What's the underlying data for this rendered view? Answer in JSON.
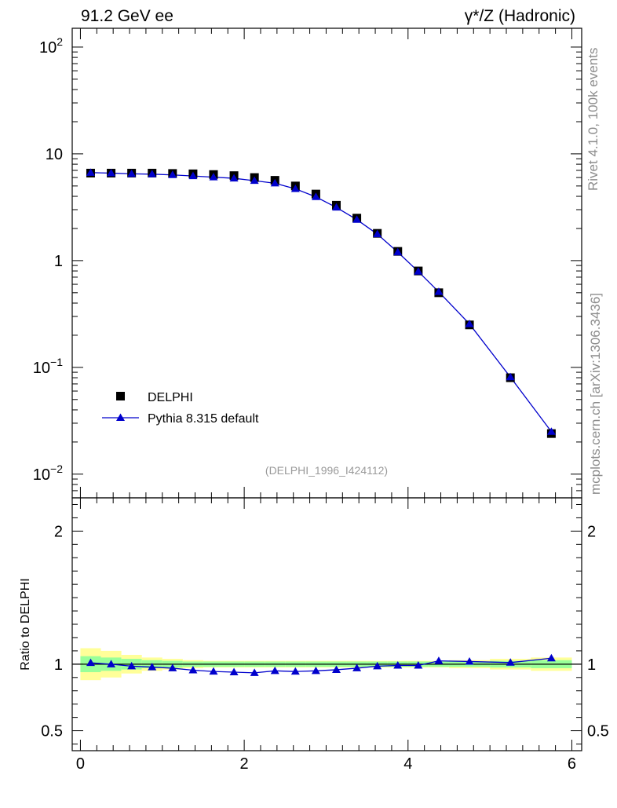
{
  "header": {
    "left_title": "91.2 GeV ee",
    "right_title": "γ*/Z (Hadronic)"
  },
  "side": {
    "rivet": "Rivet 4.1.0,  100k events",
    "mcplots": "mcplots.cern.ch [arXiv:1306.3436]"
  },
  "colors": {
    "data": "#000000",
    "mc": "#0000cc",
    "band_green": "#99ff99",
    "band_yellow": "#ffff99"
  },
  "chart_data": [
    {
      "type": "scatter",
      "title": "91.2 GeV ee",
      "subtitle": "(DELPHI_1996_I424112)",
      "xlabel": "",
      "ylabel": "",
      "xlim": [
        -0.1,
        6.12
      ],
      "ylim": [
        0.006,
        150
      ],
      "yscale": "log",
      "y_ticks": [
        {
          "v": 0.01,
          "base": "10",
          "exp": "−2"
        },
        {
          "v": 0.1,
          "base": "10",
          "exp": "−1"
        },
        {
          "v": 1,
          "base": "1",
          "exp": ""
        },
        {
          "v": 10,
          "base": "10",
          "exp": ""
        },
        {
          "v": 100,
          "base": "10",
          "exp": "2"
        }
      ],
      "legend": {
        "position": "bottom-left",
        "entries": [
          "DELPHI",
          "Pythia 8.315 default"
        ]
      },
      "series": [
        {
          "name": "DELPHI",
          "marker": "square",
          "x": [
            0.125,
            0.375,
            0.625,
            0.875,
            1.125,
            1.375,
            1.625,
            1.875,
            2.125,
            2.375,
            2.625,
            2.875,
            3.125,
            3.375,
            3.625,
            3.875,
            4.125,
            4.375,
            4.75,
            5.25,
            5.75
          ],
          "y": [
            6.6,
            6.6,
            6.6,
            6.6,
            6.55,
            6.5,
            6.4,
            6.25,
            6.0,
            5.65,
            5.0,
            4.2,
            3.3,
            2.5,
            1.8,
            1.22,
            0.8,
            0.5,
            0.25,
            0.08,
            0.024
          ]
        },
        {
          "name": "Pythia 8.315 default",
          "marker": "triangle",
          "x": [
            0.125,
            0.375,
            0.625,
            0.875,
            1.125,
            1.375,
            1.625,
            1.875,
            2.125,
            2.375,
            2.625,
            2.875,
            3.125,
            3.375,
            3.625,
            3.875,
            4.125,
            4.375,
            4.75,
            5.25,
            5.75
          ],
          "y": [
            6.67,
            6.6,
            6.5,
            6.45,
            6.35,
            6.2,
            6.05,
            5.9,
            5.6,
            5.3,
            4.7,
            3.95,
            3.15,
            2.42,
            1.77,
            1.2,
            0.79,
            0.51,
            0.255,
            0.081,
            0.025
          ]
        }
      ]
    },
    {
      "type": "line",
      "title": "",
      "xlabel": "",
      "ylabel": "Ratio to DELPHI",
      "xlim": [
        -0.1,
        6.12
      ],
      "ylim": [
        0.35,
        2.25
      ],
      "x_ticks": [
        0,
        2,
        4,
        6
      ],
      "y_ticks": [
        0.5,
        1,
        2
      ],
      "reference_line": 1,
      "bands": {
        "edges": [
          0,
          0.25,
          0.5,
          0.75,
          1.0,
          1.25,
          1.5,
          1.75,
          2.0,
          2.25,
          2.5,
          2.75,
          3.0,
          3.25,
          3.5,
          3.75,
          4.0,
          4.25,
          4.5,
          5.0,
          5.5,
          6.0
        ],
        "green": [
          0.06,
          0.05,
          0.04,
          0.03,
          0.025,
          0.02,
          0.02,
          0.02,
          0.02,
          0.02,
          0.02,
          0.02,
          0.02,
          0.02,
          0.02,
          0.02,
          0.02,
          0.02,
          0.02,
          0.025,
          0.03
        ],
        "yellow": [
          0.12,
          0.1,
          0.07,
          0.05,
          0.04,
          0.03,
          0.025,
          0.025,
          0.025,
          0.025,
          0.025,
          0.025,
          0.025,
          0.025,
          0.025,
          0.025,
          0.025,
          0.025,
          0.03,
          0.04,
          0.05
        ]
      },
      "series": [
        {
          "name": "Pythia 8.315 default",
          "x": [
            0.125,
            0.375,
            0.625,
            0.875,
            1.125,
            1.375,
            1.625,
            1.875,
            2.125,
            2.375,
            2.625,
            2.875,
            3.125,
            3.375,
            3.625,
            3.875,
            4.125,
            4.375,
            4.75,
            5.25,
            5.75
          ],
          "y": [
            1.01,
            1.0,
            0.985,
            0.978,
            0.97,
            0.955,
            0.945,
            0.94,
            0.935,
            0.95,
            0.945,
            0.95,
            0.958,
            0.97,
            0.985,
            0.99,
            0.99,
            1.025,
            1.02,
            1.012,
            1.045
          ]
        }
      ]
    }
  ]
}
